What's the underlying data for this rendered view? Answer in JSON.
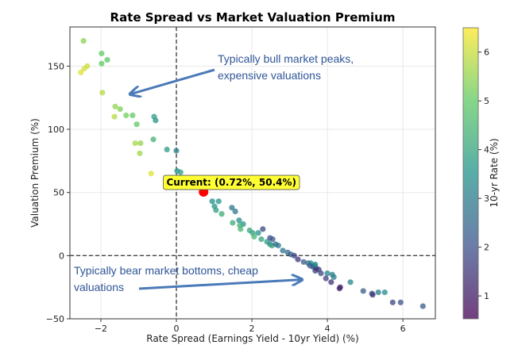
{
  "chart_data": {
    "type": "scatter",
    "title": "Rate Spread vs Market Valuation Premium",
    "xlabel": "Rate Spread (Earnings Yield - 10yr Yield) (%)",
    "ylabel": "Valuation Premium (%)",
    "xlim": [
      -2.82,
      6.86
    ],
    "ylim": [
      -50,
      181
    ],
    "xticks": [
      -2,
      0,
      2,
      4,
      6
    ],
    "yticks": [
      -50,
      0,
      50,
      100,
      150
    ],
    "grid": true,
    "colorbar": {
      "label": "10-yr Rate (%)",
      "range": [
        0.53,
        6.5
      ],
      "ticks": [
        1,
        2,
        3,
        4,
        5,
        6
      ],
      "colormap": "viridis"
    },
    "reference_lines": {
      "x": 0,
      "y": 0
    },
    "points": [
      [
        -2.46,
        170,
        5.4
      ],
      [
        -2.53,
        145,
        6.2
      ],
      [
        -2.44,
        148,
        6.1
      ],
      [
        -2.36,
        150,
        6.0
      ],
      [
        -1.98,
        160,
        5.0
      ],
      [
        -1.83,
        155,
        4.9
      ],
      [
        -1.98,
        152,
        5.0
      ],
      [
        -1.96,
        129,
        5.8
      ],
      [
        -1.62,
        118,
        5.5
      ],
      [
        -1.49,
        116,
        5.3
      ],
      [
        -1.64,
        110,
        5.8
      ],
      [
        -1.33,
        111,
        5.2
      ],
      [
        -1.16,
        111,
        5.0
      ],
      [
        -1.05,
        104,
        5.0
      ],
      [
        -0.59,
        110,
        3.8
      ],
      [
        -0.55,
        107,
        3.6
      ],
      [
        -0.61,
        92,
        4.4
      ],
      [
        -1.09,
        89,
        5.7
      ],
      [
        -0.95,
        89,
        5.5
      ],
      [
        -0.97,
        81,
        5.6
      ],
      [
        -0.25,
        84,
        3.8
      ],
      [
        0.0,
        83,
        3.0
      ],
      [
        -0.67,
        65,
        6.2
      ],
      [
        0.02,
        67,
        3.5
      ],
      [
        0.11,
        66,
        3.8
      ],
      [
        0.95,
        43,
        3.4
      ],
      [
        1.12,
        43,
        3.6
      ],
      [
        1.01,
        39,
        3.6
      ],
      [
        1.05,
        36,
        3.8
      ],
      [
        1.2,
        33,
        4.2
      ],
      [
        1.47,
        38,
        2.8
      ],
      [
        1.56,
        35,
        2.9
      ],
      [
        1.49,
        26,
        4.2
      ],
      [
        1.66,
        28,
        3.5
      ],
      [
        1.77,
        25,
        3.6
      ],
      [
        1.7,
        21,
        4.5
      ],
      [
        1.68,
        24,
        4.4
      ],
      [
        1.94,
        20,
        4.0
      ],
      [
        2.02,
        18,
        3.9
      ],
      [
        2.06,
        15,
        4.5
      ],
      [
        2.17,
        18,
        3.5
      ],
      [
        2.29,
        21,
        1.8
      ],
      [
        2.25,
        13,
        4.0
      ],
      [
        2.4,
        11,
        3.8
      ],
      [
        2.48,
        9,
        3.2
      ],
      [
        2.53,
        8,
        4.0
      ],
      [
        2.48,
        14,
        1.9
      ],
      [
        2.55,
        13,
        2.2
      ],
      [
        2.63,
        9,
        2.5
      ],
      [
        2.7,
        8,
        3.0
      ],
      [
        2.82,
        4,
        2.8
      ],
      [
        2.95,
        2.5,
        2.6
      ],
      [
        3.03,
        1,
        2.3
      ],
      [
        3.12,
        0,
        1.8
      ],
      [
        3.22,
        -3,
        1.5
      ],
      [
        3.37,
        -5,
        2.2
      ],
      [
        3.49,
        -6,
        2.6
      ],
      [
        3.56,
        -6,
        3.2
      ],
      [
        3.54,
        -8,
        2.3
      ],
      [
        3.62,
        -9,
        2.4
      ],
      [
        3.7,
        -10,
        1.5
      ],
      [
        3.66,
        -8,
        2.0
      ],
      [
        3.68,
        -7,
        3.5
      ],
      [
        3.77,
        -11,
        1.5
      ],
      [
        3.68,
        -12,
        1.6
      ],
      [
        4.0,
        -14,
        3.2
      ],
      [
        4.13,
        -15,
        3.0
      ],
      [
        4.17,
        -17,
        3.1
      ],
      [
        3.83,
        -14,
        1.8
      ],
      [
        3.96,
        -18,
        1.7
      ],
      [
        4.1,
        -21,
        1.5
      ],
      [
        4.34,
        -25,
        1.2
      ],
      [
        4.32,
        -26,
        1.1
      ],
      [
        4.61,
        -21,
        3.2
      ],
      [
        4.95,
        -28,
        2.2
      ],
      [
        5.18,
        -30,
        2.0
      ],
      [
        5.2,
        -31,
        1.5
      ],
      [
        5.35,
        -29,
        3.0
      ],
      [
        5.52,
        -29,
        3.4
      ],
      [
        5.73,
        -37,
        1.8
      ],
      [
        5.94,
        -37,
        2.0
      ],
      [
        6.53,
        -40,
        2.2
      ]
    ],
    "current": {
      "x": 0.72,
      "y": 50.4,
      "label": "Current: (0.72%, 50.4%)",
      "color": "#ff0000"
    },
    "annotations": [
      {
        "lines": [
          "Typically bull market peaks,",
          "expensive valuations"
        ],
        "arrow_to": [
          -1.2,
          128
        ]
      },
      {
        "lines": [
          "Typically bear market bottoms,  cheap",
          "valuations"
        ],
        "arrow_to": [
          3.3,
          -19
        ]
      }
    ],
    "annotation_color": "#2f5597"
  }
}
